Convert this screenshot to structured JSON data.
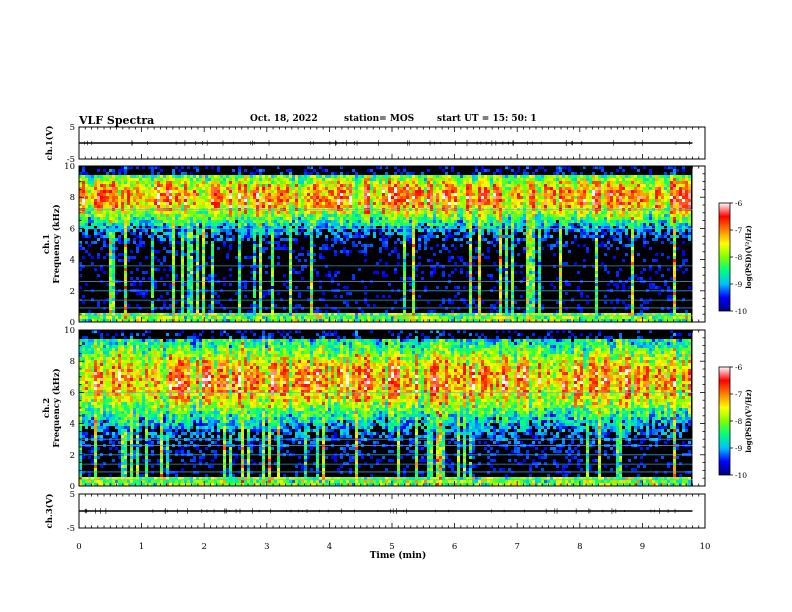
{
  "header": {
    "title": "VLF Spectra",
    "date": "Oct. 18, 2022",
    "station": "station= MOS",
    "start": "start  UT =   15: 50: 1"
  },
  "colorbar": {
    "label": "log(PSD)(V²/Hz)",
    "ticks": [
      -6,
      -7,
      -8,
      -9,
      -10
    ],
    "min": -10,
    "max": -6,
    "colors": [
      "#000080",
      "#0000ff",
      "#00bfff",
      "#00ff80",
      "#80ff00",
      "#ffff00",
      "#ff8000",
      "#ff0000",
      "#ffffff"
    ]
  },
  "chart_data": [
    {
      "type": "line",
      "panel": "ch1-waveform",
      "ylabel": "ch.1(V)",
      "ylim": [
        -5,
        5
      ],
      "yticks": [
        "5",
        "-5"
      ],
      "series": [
        {
          "values": [
            0,
            0
          ]
        }
      ],
      "x": [
        0,
        9.8
      ]
    },
    {
      "type": "heatmap",
      "panel": "ch1-spectrogram",
      "ylabel_line1": "ch.1",
      "ylabel_line2": "Frequency (kHz)",
      "ylim": [
        0,
        10
      ],
      "yticks": [
        0,
        2,
        4,
        6,
        8,
        10
      ],
      "xlim": [
        0,
        9.8
      ],
      "band_center_khz": 8.0,
      "lines_khz": [
        0.4,
        0.9,
        1.4,
        2.0,
        2.6,
        3.6,
        6.0,
        7.2
      ]
    },
    {
      "type": "heatmap",
      "panel": "ch2-spectrogram",
      "ylabel_line1": "ch.2",
      "ylabel_line2": "Frequency (kHz)",
      "ylim": [
        0,
        10
      ],
      "yticks": [
        0,
        2,
        4,
        6,
        8,
        10
      ],
      "xlim": [
        0,
        9.8
      ],
      "band_center_khz": 6.8,
      "lines_khz": [
        0.4,
        0.9,
        1.4,
        2.0,
        2.6,
        3.0,
        6.0
      ]
    },
    {
      "type": "line",
      "panel": "ch3-waveform",
      "ylabel": "ch.3(V)",
      "ylim": [
        -5,
        5
      ],
      "yticks": [
        "5",
        "-5"
      ],
      "series": [
        {
          "values": [
            0,
            0
          ]
        }
      ],
      "x": [
        0,
        9.8
      ]
    }
  ],
  "xaxis": {
    "label": "Time (min)",
    "range": [
      0,
      10
    ],
    "ticks": [
      "0",
      "1",
      "2",
      "3",
      "4",
      "5",
      "6",
      "7",
      "8",
      "9",
      "10"
    ],
    "data_end": 9.8
  }
}
